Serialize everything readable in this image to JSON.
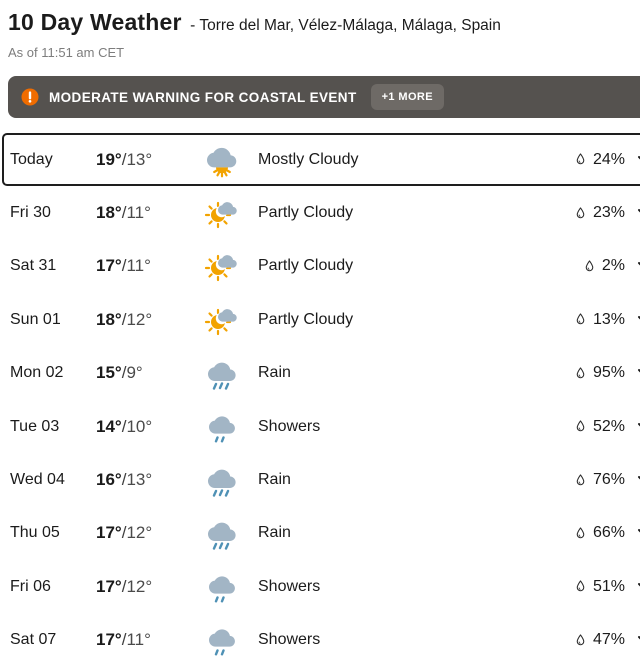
{
  "header": {
    "title": "10 Day Weather",
    "location": "- Torre del Mar, Vélez-Málaga, Málaga, Spain",
    "as_of": "As of 11:51 am CET"
  },
  "warning": {
    "label": "MODERATE WARNING FOR COASTAL EVENT",
    "more_label": "+1 MORE"
  },
  "colors": {
    "banner_bg": "#55524f",
    "warning_orange": "#f06c00",
    "cloud_gray": "#a2b5c5",
    "sun_yellow": "#f2a300",
    "rain_blue": "#4f91b5",
    "text_dark": "#1b1b1b"
  },
  "forecast": {
    "rows": [
      {
        "day": "Today",
        "high": "19°",
        "sep": "/",
        "low": "13°",
        "condition": "Mostly Cloudy",
        "icon": "mostly-cloudy",
        "precip": "24%",
        "selected": true
      },
      {
        "day": "Fri 30",
        "high": "18°",
        "sep": "/",
        "low": "11°",
        "condition": "Partly Cloudy",
        "icon": "partly-cloudy",
        "precip": "23%"
      },
      {
        "day": "Sat 31",
        "high": "17°",
        "sep": "/",
        "low": "11°",
        "condition": "Partly Cloudy",
        "icon": "partly-cloudy",
        "precip": "2%"
      },
      {
        "day": "Sun 01",
        "high": "18°",
        "sep": "/",
        "low": "12°",
        "condition": "Partly Cloudy",
        "icon": "partly-cloudy",
        "precip": "13%"
      },
      {
        "day": "Mon 02",
        "high": "15°",
        "sep": "/",
        "low": "9°",
        "condition": "Rain",
        "icon": "rain",
        "precip": "95%"
      },
      {
        "day": "Tue 03",
        "high": "14°",
        "sep": "/",
        "low": "10°",
        "condition": "Showers",
        "icon": "showers",
        "precip": "52%"
      },
      {
        "day": "Wed 04",
        "high": "16°",
        "sep": "/",
        "low": "13°",
        "condition": "Rain",
        "icon": "rain",
        "precip": "76%"
      },
      {
        "day": "Thu 05",
        "high": "17°",
        "sep": "/",
        "low": "12°",
        "condition": "Rain",
        "icon": "rain",
        "precip": "66%"
      },
      {
        "day": "Fri 06",
        "high": "17°",
        "sep": "/",
        "low": "12°",
        "condition": "Showers",
        "icon": "showers",
        "precip": "51%"
      },
      {
        "day": "Sat 07",
        "high": "17°",
        "sep": "/",
        "low": "11°",
        "condition": "Showers",
        "icon": "showers",
        "precip": "47%"
      }
    ]
  }
}
